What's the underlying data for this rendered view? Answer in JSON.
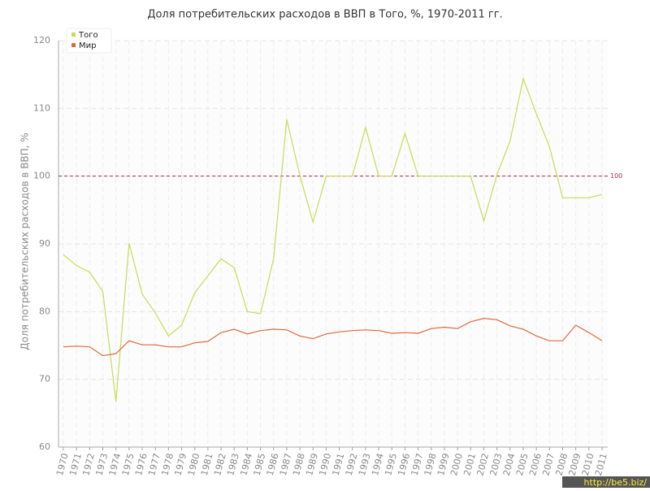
{
  "chart_data": {
    "type": "line",
    "title": "Доля потребительских расходов в ВВП в Того, %, 1970-2011 гг.",
    "y_label": "Доля потребительских расходов в ВВП, %",
    "x": [
      1970,
      1971,
      1972,
      1973,
      1974,
      1975,
      1976,
      1977,
      1978,
      1979,
      1980,
      1981,
      1982,
      1983,
      1984,
      1985,
      1986,
      1987,
      1988,
      1989,
      1990,
      1991,
      1992,
      1993,
      1994,
      1995,
      1996,
      1997,
      1998,
      1999,
      2000,
      2001,
      2002,
      2003,
      2004,
      2005,
      2006,
      2007,
      2008,
      2009,
      2010,
      2011
    ],
    "series": [
      {
        "name": "Того",
        "color": "#c5dd55",
        "values": [
          88.4,
          86.8,
          85.8,
          83.0,
          66.7,
          90.1,
          82.6,
          79.8,
          76.4,
          78.0,
          82.8,
          85.3,
          87.8,
          86.5,
          80.0,
          79.7,
          87.8,
          108.4,
          100.1,
          93.2,
          100,
          100,
          100,
          107.2,
          100,
          100,
          106.3,
          100,
          100,
          100,
          100,
          100,
          93.4,
          100.2,
          105.2,
          114.4,
          109.2,
          104.3,
          96.8,
          96.8,
          96.8,
          97.3
        ]
      },
      {
        "name": "Мир",
        "color": "#e0683c",
        "values": [
          74.8,
          74.9,
          74.8,
          73.5,
          73.8,
          75.7,
          75.1,
          75.1,
          74.8,
          74.8,
          75.4,
          75.6,
          76.9,
          77.4,
          76.7,
          77.2,
          77.4,
          77.3,
          76.4,
          76.0,
          76.7,
          77.0,
          77.2,
          77.3,
          77.2,
          76.8,
          76.9,
          76.8,
          77.5,
          77.7,
          77.5,
          78.5,
          79.0,
          78.8,
          77.9,
          77.4,
          76.4,
          75.7,
          75.7,
          78.0,
          76.9,
          75.7
        ]
      }
    ],
    "xlim": [
      1970,
      2011
    ],
    "ylim": [
      60,
      120
    ],
    "yticks": [
      60,
      70,
      80,
      90,
      100,
      110,
      120
    ],
    "reference_line": {
      "value": 100,
      "color": "#a0304a"
    },
    "grid": true,
    "legend": "top-left",
    "watermark": "http://be5.biz/"
  }
}
